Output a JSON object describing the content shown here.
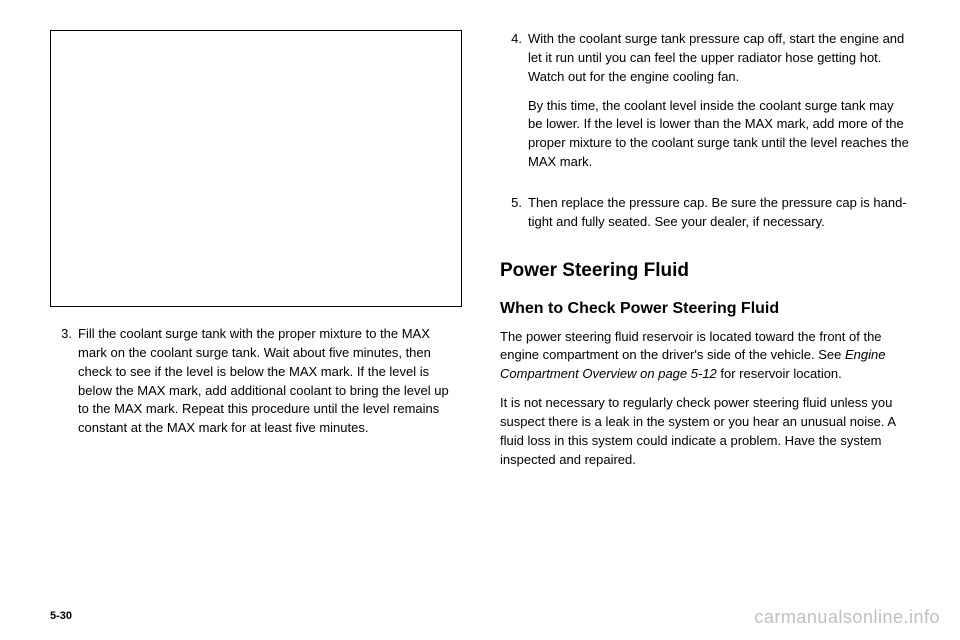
{
  "left": {
    "step3_num": "3.",
    "step3_text": "Fill the coolant surge tank with the proper mixture to the MAX mark on the coolant surge tank. Wait about five minutes, then check to see if the level is below the MAX mark. If the level is below the MAX mark, add additional coolant to bring the level up to the MAX mark. Repeat this procedure until the level remains constant at the MAX mark for at least five minutes."
  },
  "right": {
    "step4_num": "4.",
    "step4_p1": "With the coolant surge tank pressure cap off, start the engine and let it run until you can feel the upper radiator hose getting hot. Watch out for the engine cooling fan.",
    "step4_p2": "By this time, the coolant level inside the coolant surge tank may be lower. If the level is lower than the MAX mark, add more of the proper mixture to the coolant surge tank until the level reaches the MAX mark.",
    "step5_num": "5.",
    "step5_text": "Then replace the pressure cap. Be sure the pressure cap is hand-tight and fully seated. See your dealer, if necessary.",
    "h2": "Power Steering Fluid",
    "h3": "When to Check Power Steering Fluid",
    "p1a": "The power steering fluid reservoir is located toward the front of the engine compartment on the driver's side of the vehicle. See ",
    "p1b": "Engine Compartment Overview on page 5-12",
    "p1c": " for reservoir location.",
    "p2": "It is not necessary to regularly check power steering fluid unless you suspect there is a leak in the system or you hear an unusual noise. A fluid loss in this system could indicate a problem. Have the system inspected and repaired."
  },
  "footer": {
    "page": "5-30",
    "watermark": "carmanualsonline.info"
  }
}
